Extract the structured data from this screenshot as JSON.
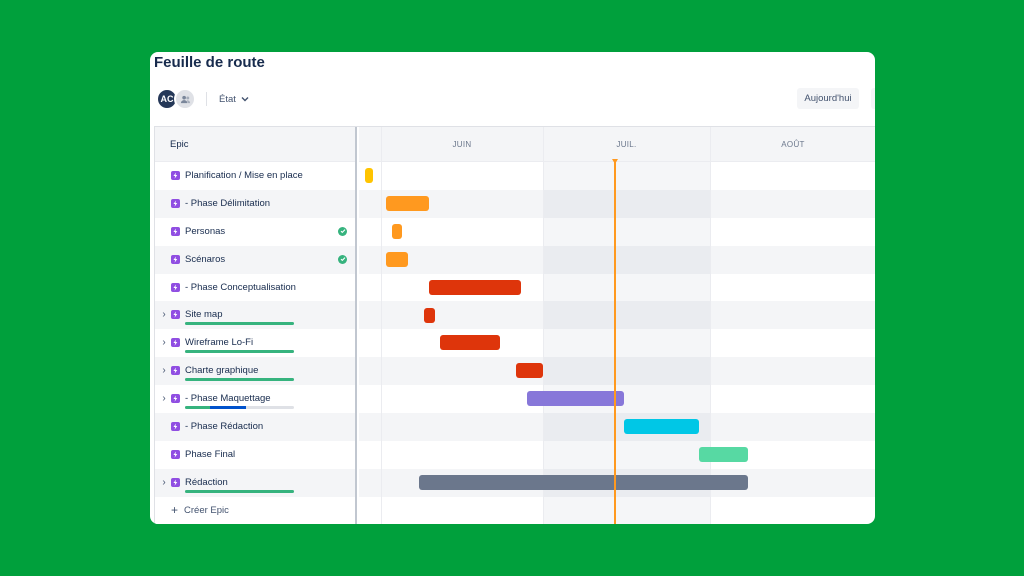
{
  "page": {
    "title": "Feuille de route",
    "avatar_initials": "AC",
    "filter_label": "État",
    "today_button": "Aujourd'hui"
  },
  "table": {
    "column_header": "Epic",
    "create_label": "Créer Epic"
  },
  "timeline": {
    "months": [
      "JUIN",
      "JUIL.",
      "AOÛT"
    ],
    "today_line_color": "#ff991f",
    "bars_note_units": "fraction of visible timeline width"
  },
  "epics": [
    {
      "label": "Planification / Mise en place",
      "expandable": false,
      "done": false,
      "progress": null,
      "bar_color": "#ffc400"
    },
    {
      "label": "- Phase Délimitation",
      "expandable": false,
      "done": false,
      "progress": null,
      "bar_color": "#ff991f"
    },
    {
      "label": "Personas",
      "expandable": false,
      "done": true,
      "progress": null,
      "bar_color": "#ff991f"
    },
    {
      "label": "Scénaros",
      "expandable": false,
      "done": true,
      "progress": null,
      "bar_color": "#ff991f"
    },
    {
      "label": "- Phase Conceptualisation",
      "expandable": false,
      "done": false,
      "progress": null,
      "bar_color": "#de350b"
    },
    {
      "label": "Site map",
      "expandable": true,
      "done": false,
      "progress": {
        "done": 1.0,
        "in_progress": 0
      },
      "bar_color": "#de350b"
    },
    {
      "label": "Wireframe Lo-Fi",
      "expandable": true,
      "done": false,
      "progress": {
        "done": 1.0,
        "in_progress": 0
      },
      "bar_color": "#de350b"
    },
    {
      "label": "Charte graphique",
      "expandable": true,
      "done": false,
      "progress": {
        "done": 1.0,
        "in_progress": 0
      },
      "bar_color": "#de350b"
    },
    {
      "label": "- Phase Maquettage",
      "expandable": true,
      "done": false,
      "progress": {
        "done": 0.23,
        "in_progress": 0.33
      },
      "bar_color": "#8777d9"
    },
    {
      "label": "- Phase Rédaction",
      "expandable": false,
      "done": false,
      "progress": null,
      "bar_color": "#00c7e6"
    },
    {
      "label": "Phase Final",
      "expandable": false,
      "done": false,
      "progress": null,
      "bar_color": "#57d9a3"
    },
    {
      "label": "Rédaction",
      "expandable": true,
      "done": false,
      "progress": {
        "done": 1.0,
        "in_progress": 0
      },
      "bar_color": "#6b778c"
    }
  ],
  "colors": {
    "background": "#00a03c",
    "epic_icon": "#904ee2",
    "done": "#36b37e",
    "in_progress": "#0052cc"
  }
}
